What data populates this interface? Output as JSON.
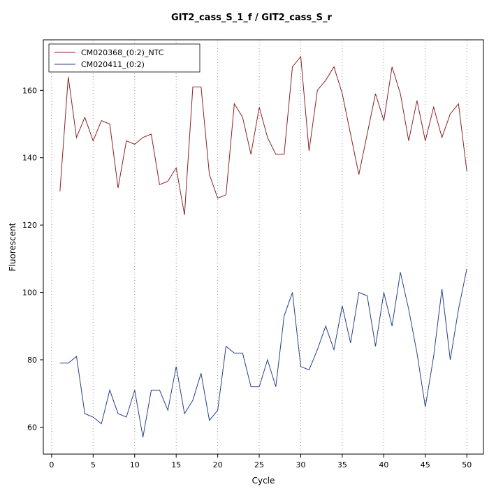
{
  "title": "GIT2_cass_S_1_f / GIT2_cass_S_r",
  "chart_data": {
    "type": "line",
    "title": "GIT2_cass_S_1_f / GIT2_cass_S_r",
    "xlabel": "Cycle",
    "ylabel": "Fluorescent",
    "xlim": [
      -1,
      52
    ],
    "ylim": [
      52,
      175
    ],
    "xticks": [
      0,
      5,
      10,
      15,
      20,
      25,
      30,
      35,
      40,
      45,
      50
    ],
    "yticks": [
      60,
      80,
      100,
      120,
      140,
      160
    ],
    "grid": "vertical-dotted",
    "grid_color": "#999999",
    "axis_color": "#000000",
    "legend_position": "top-left",
    "series": [
      {
        "name": "CM020368_(0:2)_NTC",
        "color": "#8B2323",
        "x": [
          1,
          2,
          3,
          4,
          5,
          6,
          7,
          8,
          9,
          10,
          11,
          12,
          13,
          14,
          15,
          16,
          17,
          18,
          19,
          20,
          21,
          22,
          23,
          24,
          25,
          26,
          27,
          28,
          29,
          30,
          31,
          32,
          33,
          34,
          35,
          36,
          37,
          38,
          39,
          40,
          41,
          42,
          43,
          44,
          45,
          46,
          47,
          48,
          49,
          50
        ],
        "values": [
          130,
          164,
          146,
          152,
          145,
          151,
          150,
          131,
          145,
          144,
          146,
          147,
          132,
          133,
          137,
          123,
          161,
          161,
          135,
          128,
          129,
          156,
          152,
          141,
          155,
          146,
          141,
          141,
          167,
          170,
          142,
          160,
          163,
          167,
          159,
          147,
          135,
          147,
          159,
          151,
          167,
          159,
          145,
          157,
          145,
          155,
          146,
          153,
          156,
          136
        ]
      },
      {
        "name": "CM020411_(0:2)",
        "color": "#27408B",
        "x": [
          1,
          2,
          3,
          4,
          5,
          6,
          7,
          8,
          9,
          10,
          11,
          12,
          13,
          14,
          15,
          16,
          17,
          18,
          19,
          20,
          21,
          22,
          23,
          24,
          25,
          26,
          27,
          28,
          29,
          30,
          31,
          32,
          33,
          34,
          35,
          36,
          37,
          38,
          39,
          40,
          41,
          42,
          43,
          44,
          45,
          46,
          47,
          48,
          49,
          50
        ],
        "values": [
          79,
          79,
          81,
          64,
          63,
          61,
          71,
          64,
          63,
          71,
          57,
          71,
          71,
          65,
          78,
          64,
          68,
          76,
          62,
          65,
          84,
          82,
          82,
          72,
          72,
          80,
          72,
          93,
          100,
          78,
          77,
          83,
          90,
          83,
          96,
          85,
          100,
          99,
          84,
          100,
          90,
          106,
          95,
          82,
          66,
          81,
          101,
          80,
          95,
          107
        ]
      }
    ]
  }
}
